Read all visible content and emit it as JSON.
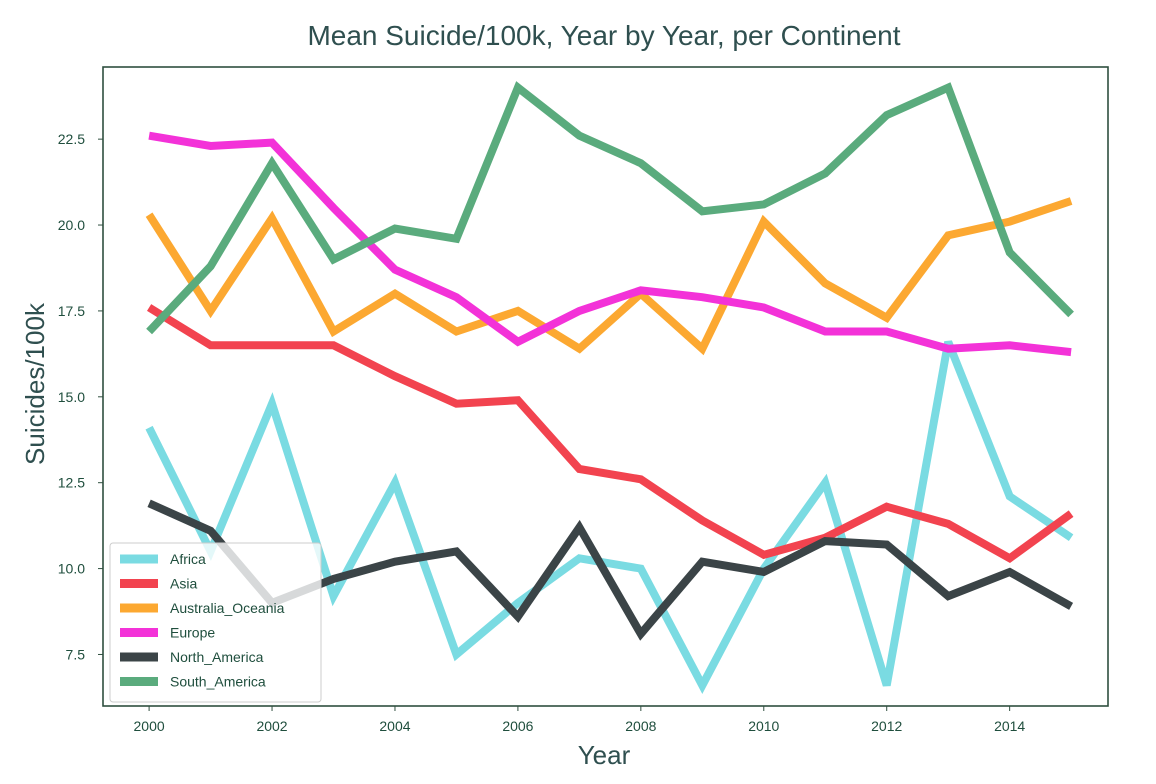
{
  "chart_data": {
    "type": "line",
    "title": "Mean Suicide/100k, Year by Year, per Continent",
    "xlabel": "Year",
    "ylabel": "Suicides/100k",
    "x": [
      2000,
      2001,
      2002,
      2003,
      2004,
      2005,
      2006,
      2007,
      2008,
      2009,
      2010,
      2011,
      2012,
      2013,
      2014,
      2015
    ],
    "xlim": [
      1999.25,
      2015.6
    ],
    "ylim": [
      6.0,
      24.6
    ],
    "xticks": [
      2000,
      2002,
      2004,
      2006,
      2008,
      2010,
      2012,
      2014
    ],
    "xtick_labels": [
      "2000",
      "2002",
      "2004",
      "2006",
      "2008",
      "2010",
      "2012",
      "2014"
    ],
    "yticks": [
      7.5,
      10.0,
      12.5,
      15.0,
      17.5,
      20.0,
      22.5
    ],
    "ytick_labels": [
      "7.5",
      "10.0",
      "12.5",
      "15.0",
      "17.5",
      "20.0",
      "22.5"
    ],
    "grid": false,
    "legend_position": "lower-left",
    "series": [
      {
        "name": "Africa",
        "color": "#7adbe2",
        "values": [
          14.1,
          10.5,
          14.8,
          9.2,
          12.5,
          7.5,
          9.0,
          10.3,
          10.0,
          6.6,
          10.0,
          12.5,
          6.6,
          16.6,
          12.1,
          10.9
        ]
      },
      {
        "name": "Asia",
        "color": "#f2434f",
        "values": [
          17.6,
          16.5,
          16.5,
          16.5,
          15.6,
          14.8,
          14.9,
          12.9,
          12.6,
          11.4,
          10.4,
          10.9,
          11.8,
          11.3,
          10.3,
          11.6
        ]
      },
      {
        "name": "Australia_Oceania",
        "color": "#fca831",
        "values": [
          20.3,
          17.5,
          20.2,
          16.9,
          18.0,
          16.9,
          17.5,
          16.4,
          18.0,
          16.4,
          20.1,
          18.3,
          17.3,
          19.7,
          20.1,
          20.7
        ]
      },
      {
        "name": "Europe",
        "color": "#f332d8",
        "values": [
          22.6,
          22.3,
          22.4,
          20.5,
          18.7,
          17.9,
          16.6,
          17.5,
          18.1,
          17.9,
          17.6,
          16.9,
          16.9,
          16.4,
          16.5,
          16.3
        ]
      },
      {
        "name": "North_America",
        "color": "#3b4447",
        "values": [
          11.9,
          11.1,
          9.0,
          9.7,
          10.2,
          10.5,
          8.6,
          11.2,
          8.1,
          10.2,
          9.9,
          10.8,
          10.7,
          9.2,
          9.9,
          8.9
        ]
      },
      {
        "name": "South_America",
        "color": "#5aab7d",
        "values": [
          16.9,
          18.8,
          21.8,
          19.0,
          19.9,
          19.6,
          24.0,
          22.6,
          21.8,
          20.4,
          20.6,
          21.5,
          23.2,
          24.0,
          19.2,
          17.4
        ]
      }
    ]
  }
}
